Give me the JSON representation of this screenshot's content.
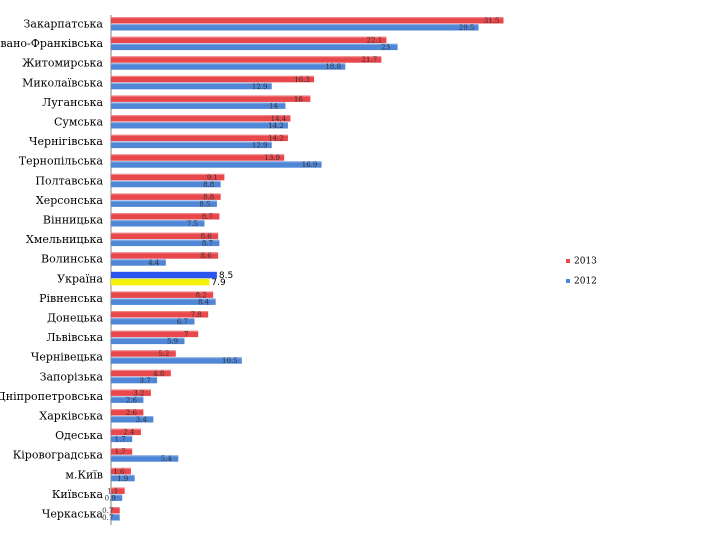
{
  "chart_data": {
    "type": "bar",
    "orientation": "horizontal",
    "title": "",
    "xlabel": "",
    "ylabel": "",
    "xlim": [
      0,
      35
    ],
    "grid": false,
    "legend_position": "right",
    "categories": [
      "Закарпатська",
      "Івано-Франківська",
      "Житомирська",
      "Миколаївська",
      "Луганська",
      "Сумська",
      "Чернігівська",
      "Тернопільська",
      "Полтавська",
      "Херсонська",
      "Вінницька",
      "Хмельницька",
      "Волинська",
      "Україна",
      "Рівненська",
      "Донецька",
      "Львівська",
      "Чернівецька",
      "Запорізька",
      "Дніпропетровська",
      "Харківська",
      "Одеська",
      "Кіровоградська",
      "м.Київ",
      "Київська",
      "Черкаська"
    ],
    "series": [
      {
        "name": "2013",
        "color": "#e8474c",
        "values": [
          31.5,
          22.1,
          21.7,
          16.3,
          16,
          14.4,
          14.2,
          13.9,
          9.1,
          8.8,
          8.7,
          8.6,
          8.6,
          8.5,
          8.2,
          7.8,
          7,
          5.2,
          4.8,
          3.2,
          2.6,
          2.4,
          1.7,
          1.6,
          1.1,
          0.7
        ],
        "labels": [
          "31.5",
          "22.1",
          "21.7",
          "16.3",
          "16",
          "14.4",
          "14.2",
          "13.9",
          "9.1",
          "8.8",
          "8.7",
          "8.6",
          "8.6",
          "8.5",
          "8.2",
          "7.8",
          "7",
          "5.2",
          "4.8",
          "3.2",
          "2.6",
          "2.4",
          "1.7",
          "1.6",
          "1.1",
          "0.7"
        ]
      },
      {
        "name": "2012",
        "color": "#4f86d6",
        "values": [
          29.5,
          23,
          18.8,
          12.9,
          14,
          14.2,
          12.9,
          16.9,
          8.8,
          8.5,
          7.5,
          8.7,
          4.4,
          7.9,
          8.4,
          6.7,
          5.9,
          10.5,
          3.7,
          2.6,
          3.4,
          1.7,
          5.4,
          1.9,
          0.9,
          0.7
        ],
        "labels": [
          "29.5",
          "23",
          "18.8",
          "12.9",
          "14",
          "14.2",
          "12.9",
          "16.9",
          "8.8",
          "8.5",
          "7.5",
          "8.7",
          "4.4",
          "7.9",
          "8.4",
          "6.7",
          "5.9",
          "10.5",
          "3.7",
          "2.6",
          "3.4",
          "1.7",
          "5.4",
          "1.9",
          "0.9",
          "0.7"
        ]
      }
    ],
    "highlight": {
      "category": "Україна",
      "colors": {
        "2013": "#2a55ee",
        "2012": "#f4f00a"
      }
    }
  }
}
